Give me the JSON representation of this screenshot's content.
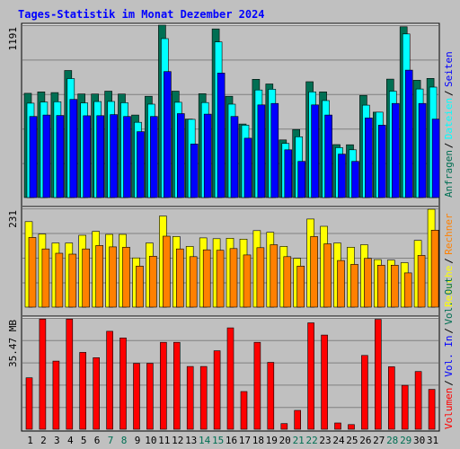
{
  "chart_data": {
    "type": "bar",
    "title": "Tages-Statistik im Monat Dezember 2024",
    "categories": [
      "1",
      "2",
      "3",
      "4",
      "5",
      "6",
      "7",
      "8",
      "9",
      "10",
      "11",
      "12",
      "13",
      "14",
      "15",
      "16",
      "17",
      "18",
      "19",
      "20",
      "21",
      "22",
      "23",
      "24",
      "25",
      "26",
      "27",
      "28",
      "29",
      "30",
      "31"
    ],
    "weekend_days": [
      "7",
      "8",
      "14",
      "15",
      "21",
      "22",
      "28",
      "29"
    ],
    "panels": [
      {
        "id": "requests",
        "axis_max_label": "1191",
        "ymax": 1191,
        "series": [
          {
            "name": "Anfragen",
            "color": "#006f53",
            "values": [
              720,
              730,
              725,
              878,
              716,
              715,
              735,
              715,
              570,
              700,
              1191,
              735,
              542,
              718,
              1165,
              700,
              508,
              817,
              785,
              398,
              470,
              800,
              730,
              366,
              365,
              706,
              590,
              818,
              1180,
              810,
              823
            ]
          },
          {
            "name": "Dateien",
            "color": "#00ffff",
            "values": [
              652,
              660,
              662,
              822,
              654,
              663,
              664,
              655,
              520,
              645,
              1098,
              658,
              540,
              656,
              1075,
              645,
              500,
              743,
              748,
              374,
              420,
              730,
              670,
              345,
              330,
              638,
              590,
              735,
              1130,
              750,
              763
            ]
          },
          {
            "name": "Seiten",
            "color": "#0000ff",
            "values": [
              560,
              570,
              567,
              678,
              565,
              566,
              573,
              560,
              455,
              560,
              870,
              580,
              370,
              576,
              860,
              560,
              410,
              640,
              650,
              330,
              250,
              640,
              570,
              300,
              250,
              550,
              500,
              650,
              880,
              650,
              542
            ]
          }
        ],
        "legend_vertical": [
          "Anfragen",
          "Dateien",
          "Seiten"
        ]
      },
      {
        "id": "visits",
        "axis_max_label": "231",
        "ymax": 231,
        "series": [
          {
            "name": "Besuche",
            "color": "#ffff00",
            "values": [
              200,
              171,
              150,
              150,
              168,
              177,
              170,
              170,
              115,
              150,
              213,
              165,
              142,
              162,
              160,
              161,
              159,
              179,
              175,
              142,
              114,
              206,
              189,
              150,
              140,
              146,
              111,
              110,
              104,
              156,
              229
            ]
          },
          {
            "name": "Rechner",
            "color": "#ff8000",
            "values": [
              163,
              136,
              126,
              124,
              136,
              144,
              141,
              140,
              96,
              119,
              166,
              136,
              118,
              134,
              133,
              137,
              122,
              139,
              146,
              118,
              96,
              165,
              148,
              109,
              100,
              114,
              98,
              98,
              80,
              121,
              180
            ]
          }
        ],
        "legend_vertical": [
          "Besuche",
          "Rechner"
        ]
      },
      {
        "id": "volume",
        "axis_max_label": "35.47 MB",
        "ymax": 35.47,
        "series": [
          {
            "name": "Volumen",
            "color": "#ff0000",
            "values": [
              16.4,
              35.1,
              21.7,
              35.1,
              24.5,
              22.8,
              31.2,
              29.1,
              21.0,
              21.0,
              27.7,
              27.7,
              20.0,
              20.0,
              25.0,
              32.3,
              12.0,
              27.7,
              21.3,
              1.8,
              6.0,
              33.9,
              30.0,
              2.0,
              1.5,
              23.5,
              35.0,
              19.9,
              14.0,
              18.4,
              12.7
            ]
          }
        ],
        "legend_vertical": [
          "Volumen",
          "Vol. In",
          "Vol. Out"
        ],
        "legend_colors": [
          "#ff0000",
          "#0000ff",
          "#006f53"
        ]
      }
    ],
    "colors": {
      "background": "#c0c0c0",
      "title": "#0000ff",
      "weekday_label": "#000000",
      "weekend_label": "#006f53",
      "gridline": "#808080",
      "separator": "#ffffff"
    }
  }
}
